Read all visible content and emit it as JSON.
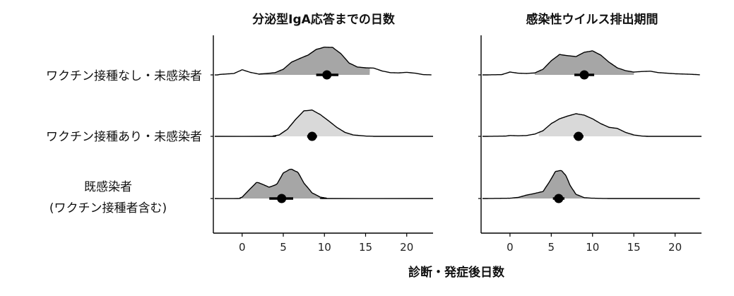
{
  "chart_data": [
    {
      "type": "area",
      "subtype": "ridgeline",
      "title": "分泌型IgA応答までの日数",
      "xlabel": "診断・発症後日数",
      "xlim": [
        -3.5,
        23.2
      ],
      "xticks": [
        "0",
        "5",
        "10",
        "15",
        "20"
      ],
      "xtick_values": [
        0,
        5,
        10,
        15,
        20
      ],
      "grid": false,
      "series": [
        {
          "name": "ワクチン接種なし・未感染者",
          "color": "#a6a6a6",
          "point": 10.3,
          "ci": [
            9.0,
            11.7
          ],
          "density": [
            [
              -3,
              0.01
            ],
            [
              -1,
              0.05
            ],
            [
              0,
              0.18
            ],
            [
              1,
              0.09
            ],
            [
              2,
              0.03
            ],
            [
              3,
              0.05
            ],
            [
              4,
              0.08
            ],
            [
              5,
              0.2
            ],
            [
              6,
              0.45
            ],
            [
              7,
              0.58
            ],
            [
              8,
              0.7
            ],
            [
              9,
              0.9
            ],
            [
              10,
              0.98
            ],
            [
              11,
              0.97
            ],
            [
              12,
              0.75
            ],
            [
              13,
              0.42
            ],
            [
              14,
              0.28
            ],
            [
              15,
              0.25
            ],
            [
              16,
              0.24
            ],
            [
              17,
              0.14
            ],
            [
              18,
              0.08
            ],
            [
              19,
              0.07
            ],
            [
              20,
              0.09
            ],
            [
              21,
              0.06
            ],
            [
              22,
              0.01
            ],
            [
              23.2,
              0
            ]
          ],
          "shaded_range": [
            2.0,
            15.5
          ]
        },
        {
          "name": "ワクチン接種あり・未感染者",
          "color": "#d9d9d9",
          "point": 8.5,
          "ci": [
            7.9,
            9.1
          ],
          "density": [
            [
              3.5,
              0
            ],
            [
              4.5,
              0.05
            ],
            [
              5.5,
              0.25
            ],
            [
              6.5,
              0.6
            ],
            [
              7.5,
              0.9
            ],
            [
              8.5,
              0.93
            ],
            [
              9.5,
              0.77
            ],
            [
              10.5,
              0.55
            ],
            [
              11.5,
              0.32
            ],
            [
              12.5,
              0.14
            ],
            [
              13.5,
              0.05
            ],
            [
              15,
              0.01
            ],
            [
              16.5,
              0
            ]
          ],
          "shaded_range": [
            3.5,
            16.5
          ]
        },
        {
          "name": "既感染者\n(ワクチン接種者含む)",
          "color": "#a6a6a6",
          "point": 4.8,
          "ci": [
            3.3,
            6.2
          ],
          "density": [
            [
              -0.5,
              0
            ],
            [
              0,
              0.05
            ],
            [
              1,
              0.35
            ],
            [
              1.8,
              0.58
            ],
            [
              2.5,
              0.5
            ],
            [
              3.3,
              0.4
            ],
            [
              4.2,
              0.5
            ],
            [
              5,
              0.9
            ],
            [
              5.9,
              1.05
            ],
            [
              6.8,
              0.92
            ],
            [
              7.5,
              0.55
            ],
            [
              8.5,
              0.2
            ],
            [
              9.5,
              0.05
            ],
            [
              10.5,
              0
            ]
          ],
          "shaded_range": [
            -0.5,
            10.5
          ]
        }
      ]
    },
    {
      "type": "area",
      "subtype": "ridgeline",
      "title": "感染性ウイルス排出期間",
      "xlabel": "診断・発症後日数",
      "xlim": [
        -3.5,
        23.2
      ],
      "xticks": [
        "0",
        "5",
        "10",
        "15",
        "20"
      ],
      "xtick_values": [
        0,
        5,
        10,
        15,
        20
      ],
      "grid": false,
      "series": [
        {
          "name": "ワクチン接種なし・未感染者",
          "color": "#a6a6a6",
          "point": 9.0,
          "ci": [
            7.8,
            10.2
          ],
          "density": [
            [
              -3,
              0
            ],
            [
              -1,
              0.01
            ],
            [
              0,
              0.1
            ],
            [
              1,
              0.06
            ],
            [
              2,
              0.05
            ],
            [
              3,
              0.07
            ],
            [
              4,
              0.2
            ],
            [
              5,
              0.5
            ],
            [
              6,
              0.72
            ],
            [
              7,
              0.68
            ],
            [
              8,
              0.65
            ],
            [
              9,
              0.8
            ],
            [
              10,
              0.85
            ],
            [
              11,
              0.7
            ],
            [
              12,
              0.45
            ],
            [
              13,
              0.25
            ],
            [
              14,
              0.15
            ],
            [
              15,
              0.1
            ],
            [
              16,
              0.12
            ],
            [
              17,
              0.13
            ],
            [
              18,
              0.08
            ],
            [
              19,
              0.06
            ],
            [
              20,
              0.04
            ],
            [
              21,
              0.03
            ],
            [
              22,
              0.02
            ],
            [
              23.2,
              0
            ]
          ],
          "shaded_range": [
            3.0,
            15.0
          ]
        },
        {
          "name": "ワクチン接種あり・未感染者",
          "color": "#d9d9d9",
          "point": 8.3,
          "ci": [
            7.7,
            8.9
          ],
          "density": [
            [
              -3,
              0
            ],
            [
              -0.5,
              0.01
            ],
            [
              0,
              0.03
            ],
            [
              1,
              0.02
            ],
            [
              2,
              0.03
            ],
            [
              3,
              0.08
            ],
            [
              4,
              0.2
            ],
            [
              5,
              0.45
            ],
            [
              6,
              0.62
            ],
            [
              7,
              0.72
            ],
            [
              8,
              0.8
            ],
            [
              9,
              0.75
            ],
            [
              10,
              0.62
            ],
            [
              11,
              0.45
            ],
            [
              12,
              0.32
            ],
            [
              13,
              0.28
            ],
            [
              14,
              0.14
            ],
            [
              15,
              0.05
            ],
            [
              16,
              0.01
            ],
            [
              17,
              0
            ]
          ],
          "shaded_range": [
            3.5,
            16.0
          ]
        },
        {
          "name": "既感染者\n(ワクチン接種者含む)",
          "color": "#a6a6a6",
          "point": 5.9,
          "ci": [
            5.2,
            6.6
          ],
          "density": [
            [
              -3,
              0
            ],
            [
              0,
              0.01
            ],
            [
              1,
              0.04
            ],
            [
              2,
              0.12
            ],
            [
              3,
              0.18
            ],
            [
              4,
              0.25
            ],
            [
              4.8,
              0.6
            ],
            [
              5.5,
              0.95
            ],
            [
              6.2,
              1.0
            ],
            [
              6.8,
              0.8
            ],
            [
              7.3,
              0.45
            ],
            [
              8,
              0.15
            ],
            [
              9,
              0.03
            ],
            [
              10,
              0.01
            ],
            [
              12,
              0
            ],
            [
              23.2,
              0
            ]
          ],
          "shaded_range": [
            0.5,
            10.0
          ]
        }
      ]
    }
  ],
  "row_labels": [
    "ワクチン接種なし・未感染者",
    "ワクチン接種あり・未感染者",
    "既感染者",
    "(ワクチン接種者含む)"
  ],
  "colors": {
    "dark_fill": "#a6a6a6",
    "light_fill": "#d9d9d9",
    "line": "#000000"
  }
}
